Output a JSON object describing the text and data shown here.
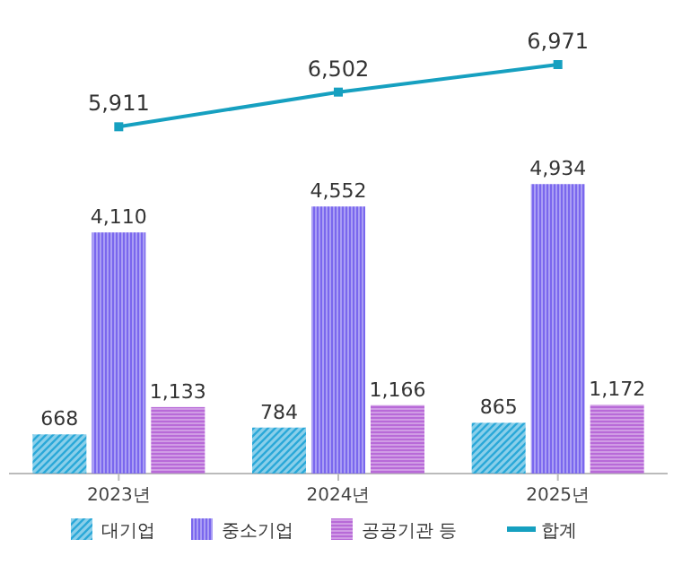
{
  "chart_data": {
    "type": "bar",
    "categories": [
      "2023년",
      "2024년",
      "2025년"
    ],
    "series": [
      {
        "name": "대기업",
        "color": "#2aa8d8",
        "values": [
          668,
          784,
          865
        ],
        "value_labels": [
          "668",
          "784",
          "865"
        ]
      },
      {
        "name": "중소기업",
        "color": "#7a67ee",
        "values": [
          4110,
          4552,
          4934
        ],
        "value_labels": [
          "4,110",
          "4,552",
          "4,934"
        ]
      },
      {
        "name": "공공기관 등",
        "color": "#b86ad8",
        "values": [
          1133,
          1166,
          1172
        ],
        "value_labels": [
          "1,133",
          "1,166",
          "1,172"
        ]
      },
      {
        "name": "합계",
        "type": "line",
        "color": "#16a0c0",
        "marker": "square",
        "values": [
          5911,
          6502,
          6971
        ],
        "value_labels": [
          "5,911",
          "6,502",
          "6,971"
        ]
      }
    ],
    "legend": "bottom",
    "tick_labels": "x"
  }
}
